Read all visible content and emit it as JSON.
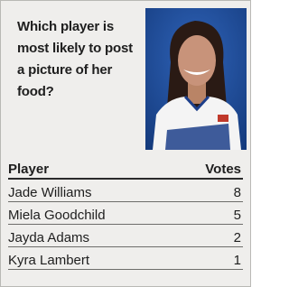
{
  "question": "Which player is most likely to post a picture of her food?",
  "table": {
    "header": [
      "Player",
      "Votes"
    ],
    "rows": [
      [
        "Jade Williams",
        8
      ],
      [
        "Miela Goodchild",
        5
      ],
      [
        "Jayda Adams",
        2
      ],
      [
        "Kyra Lambert",
        1
      ]
    ]
  }
}
